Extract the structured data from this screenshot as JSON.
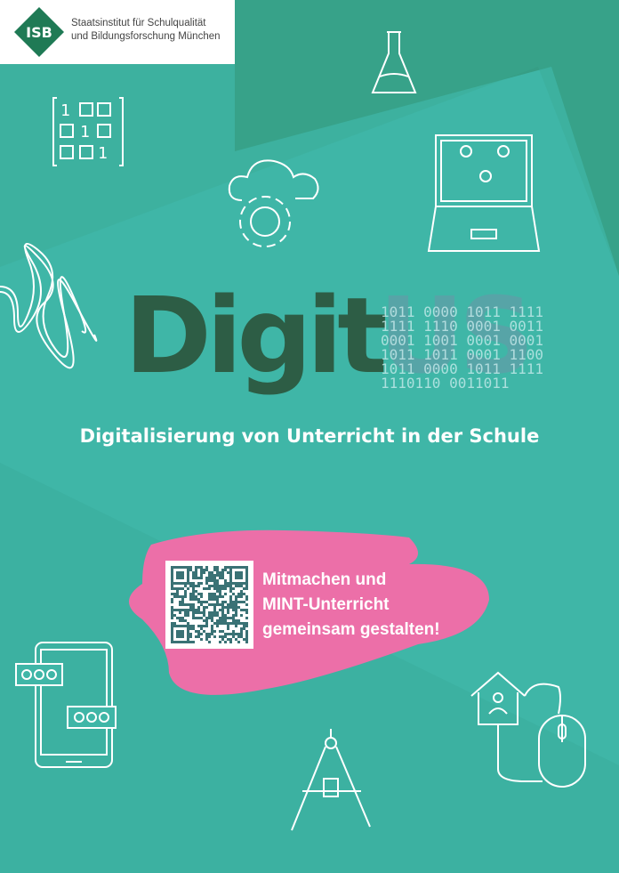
{
  "header": {
    "logo_text": "ISB",
    "org_line1": "Staatsinstitut für Schulqualität",
    "org_line2": "und Bildungsforschung München"
  },
  "title": {
    "part1": "Digit",
    "part2": "US",
    "binary_lines": [
      "1011 0000 1011 1111",
      "1111 1110 0001 0011",
      "0001 1001 0001 0001",
      "1011 1011 0001 1100",
      "1011 0000 1011 1111",
      "1110110 0011011"
    ]
  },
  "subtitle": "Digitalisierung von Unterricht in der Schule",
  "cta": {
    "line1": "Mitmachen und",
    "line2": "MINT-Unterricht",
    "line3": "gemeinsam gestalten!"
  },
  "colors": {
    "background": "#3fb6a7",
    "dark": "#2d5d45",
    "pink": "#ec6fa8",
    "qr": "#3a7275"
  },
  "icons": [
    "flask-icon",
    "binary-grid-icon",
    "cloud-gear-icon",
    "laptop-video-call-icon",
    "signal-wave-icon",
    "smartphone-chat-icon",
    "compass-icon",
    "home-mouse-icon"
  ]
}
